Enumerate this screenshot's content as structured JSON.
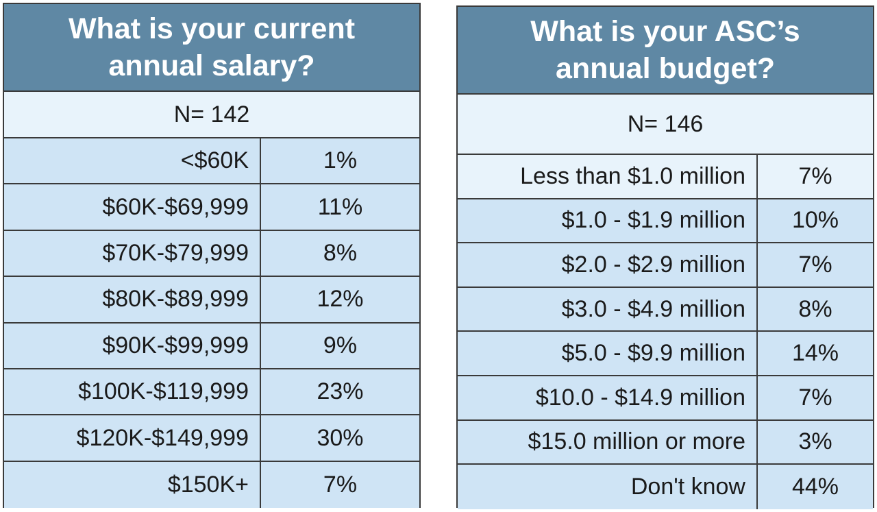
{
  "chart_data": [
    {
      "type": "table",
      "title_lines": [
        "What is your current",
        "annual salary?"
      ],
      "n_label": "N= 142",
      "rows": [
        {
          "label": "<$60K",
          "value": "1%"
        },
        {
          "label": "$60K-$69,999",
          "value": "11%"
        },
        {
          "label": "$70K-$79,999",
          "value": "8%"
        },
        {
          "label": "$80K-$89,999",
          "value": "12%"
        },
        {
          "label": "$90K-$99,999",
          "value": "9%"
        },
        {
          "label": "$100K-$119,999",
          "value": "23%"
        },
        {
          "label": "$120K-$149,999",
          "value": "30%"
        },
        {
          "label": "$150K+",
          "value": "7%"
        }
      ]
    },
    {
      "type": "table",
      "title_lines": [
        "What is your ASC’s",
        "annual budget?"
      ],
      "n_label": "N= 146",
      "rows": [
        {
          "label": "Less than $1.0 million",
          "value": "7%"
        },
        {
          "label": "$1.0 - $1.9 million",
          "value": "10%"
        },
        {
          "label": "$2.0 - $2.9 million",
          "value": "7%"
        },
        {
          "label": "$3.0 - $4.9 million",
          "value": "8%"
        },
        {
          "label": "$5.0 - $9.9 million",
          "value": "14%"
        },
        {
          "label": "$10.0 - $14.9 million",
          "value": "7%"
        },
        {
          "label": "$15.0 million or more",
          "value": "3%"
        },
        {
          "label": "Don't know",
          "value": "44%"
        }
      ]
    }
  ],
  "colors": {
    "header_bg": "#5f88a4",
    "header_text": "#ffffff",
    "row_bg": "#cfe4f5",
    "row_light_bg": "#e8f3fb",
    "border": "#3a3a3a"
  }
}
